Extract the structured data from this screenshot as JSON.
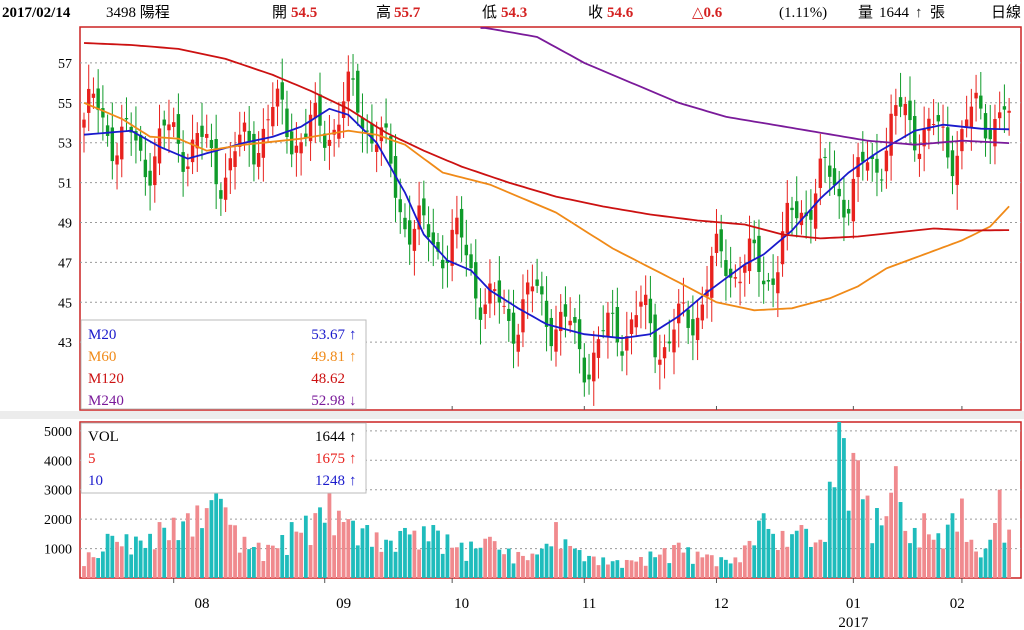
{
  "header": {
    "date": "2017/02/14",
    "stock": "3498 陽程",
    "open_label": "開",
    "open_value": "54.5",
    "high_label": "高",
    "high_value": "55.7",
    "low_label": "低",
    "low_value": "54.3",
    "close_label": "收",
    "close_value": "54.6",
    "change": "△0.6",
    "change_pct": "(1.11%)",
    "volume_label": "量",
    "volume_value": "1644",
    "volume_unit": "張",
    "period": "日線"
  },
  "colors": {
    "up": "#e8221e",
    "down": "#0f9b2a",
    "vol_up": "#f08a8e",
    "vol_down": "#1fbcbc",
    "ma20": "#1a1acc",
    "ma60": "#f08a18",
    "ma120": "#cc1111",
    "ma240": "#7a1a9a",
    "frame": "#cc2222"
  },
  "chart_data": [
    {
      "type": "candlestick",
      "y_ticks": [
        43,
        45,
        47,
        49,
        51,
        53,
        55,
        57
      ],
      "ylim": [
        39.6,
        58.8
      ],
      "x_ticks": [
        "08",
        "09",
        "10",
        "11",
        "12",
        "01",
        "02"
      ],
      "x_year_label": "2017",
      "legend": [
        {
          "name": "M20",
          "value": "53.67",
          "arrow": "↑"
        },
        {
          "name": "M60",
          "value": "49.81",
          "arrow": "↑"
        },
        {
          "name": "M120",
          "value": "48.62",
          "arrow": ""
        },
        {
          "name": "M240",
          "value": "52.98",
          "arrow": "↓"
        }
      ],
      "series": [
        {
          "name": "M20",
          "anchors": [
            [
              0,
              53.4
            ],
            [
              10,
              53.6
            ],
            [
              16,
              52.8
            ],
            [
              22,
              52.2
            ],
            [
              28,
              52.6
            ],
            [
              34,
              53.0
            ],
            [
              40,
              53.3
            ],
            [
              46,
              53.8
            ],
            [
              52,
              54.7
            ],
            [
              56,
              54.4
            ],
            [
              62,
              53.0
            ],
            [
              68,
              50.5
            ],
            [
              72,
              48.4
            ],
            [
              77,
              47.1
            ],
            [
              82,
              46.6
            ],
            [
              86,
              45.6
            ],
            [
              92,
              44.7
            ],
            [
              98,
              43.9
            ],
            [
              106,
              43.4
            ],
            [
              114,
              43.2
            ],
            [
              120,
              43.4
            ],
            [
              126,
              44.3
            ],
            [
              132,
              45.5
            ],
            [
              140,
              46.9
            ],
            [
              144,
              47.4
            ],
            [
              150,
              48.6
            ],
            [
              156,
              50.2
            ],
            [
              162,
              51.5
            ],
            [
              168,
              52.5
            ],
            [
              176,
              53.6
            ],
            [
              182,
              53.9
            ],
            [
              190,
              53.7
            ],
            [
              196,
              53.67
            ]
          ]
        },
        {
          "name": "M60",
          "anchors": [
            [
              0,
              55.0
            ],
            [
              8,
              54.2
            ],
            [
              14,
              53.3
            ],
            [
              20,
              53.2
            ],
            [
              26,
              52.6
            ],
            [
              34,
              52.9
            ],
            [
              46,
              53.2
            ],
            [
              56,
              53.6
            ],
            [
              62,
              53.4
            ],
            [
              68,
              52.9
            ],
            [
              76,
              51.5
            ],
            [
              86,
              50.9
            ],
            [
              100,
              49.5
            ],
            [
              112,
              47.7
            ],
            [
              126,
              46.0
            ],
            [
              134,
              45.0
            ],
            [
              142,
              44.6
            ],
            [
              150,
              44.7
            ],
            [
              158,
              45.2
            ],
            [
              164,
              45.8
            ],
            [
              170,
              46.7
            ],
            [
              178,
              47.4
            ],
            [
              186,
              48.1
            ],
            [
              192,
              48.8
            ],
            [
              196,
              49.81
            ]
          ]
        },
        {
          "name": "M120",
          "anchors": [
            [
              0,
              58.0
            ],
            [
              10,
              57.9
            ],
            [
              20,
              57.7
            ],
            [
              30,
              57.2
            ],
            [
              40,
              56.4
            ],
            [
              48,
              55.6
            ],
            [
              56,
              54.7
            ],
            [
              64,
              53.5
            ],
            [
              72,
              52.6
            ],
            [
              80,
              51.8
            ],
            [
              90,
              51.0
            ],
            [
              100,
              50.3
            ],
            [
              110,
              49.8
            ],
            [
              120,
              49.4
            ],
            [
              130,
              49.1
            ],
            [
              140,
              48.9
            ],
            [
              148,
              48.4
            ],
            [
              156,
              48.2
            ],
            [
              164,
              48.3
            ],
            [
              172,
              48.5
            ],
            [
              180,
              48.7
            ],
            [
              188,
              48.6
            ],
            [
              196,
              48.62
            ]
          ]
        },
        {
          "name": "M240",
          "anchors": [
            [
              84,
              58.8
            ],
            [
              96,
              58.3
            ],
            [
              106,
              57.0
            ],
            [
              116,
              56.0
            ],
            [
              126,
              55.0
            ],
            [
              136,
              54.3
            ],
            [
              146,
              53.9
            ],
            [
              156,
              53.5
            ],
            [
              166,
              53.1
            ],
            [
              176,
              52.9
            ],
            [
              186,
              53.1
            ],
            [
              196,
              52.98
            ]
          ]
        }
      ]
    },
    {
      "type": "bar",
      "y_ticks": [
        1000,
        2000,
        3000,
        4000,
        5000
      ],
      "ylim": [
        0,
        5300
      ],
      "legend": [
        {
          "name": "VOL",
          "value": "1644",
          "arrow": "↑"
        },
        {
          "name": "5",
          "value": "1675",
          "arrow": "↑"
        },
        {
          "name": "10",
          "value": "1248",
          "arrow": "↑"
        }
      ],
      "peaks": [
        [
          4,
          900
        ],
        [
          5,
          1500
        ],
        [
          14,
          1500
        ],
        [
          16,
          1900
        ],
        [
          22,
          2200
        ],
        [
          28,
          3000
        ],
        [
          30,
          2400
        ],
        [
          34,
          1400
        ],
        [
          40,
          1100
        ],
        [
          44,
          1900
        ],
        [
          50,
          2400
        ],
        [
          52,
          2900
        ],
        [
          56,
          2000
        ],
        [
          60,
          1800
        ],
        [
          64,
          1300
        ],
        [
          68,
          1700
        ],
        [
          74,
          1800
        ],
        [
          80,
          1200
        ],
        [
          86,
          1400
        ],
        [
          90,
          1000
        ],
        [
          96,
          800
        ],
        [
          100,
          1900
        ],
        [
          104,
          1000
        ],
        [
          110,
          700
        ],
        [
          116,
          600
        ],
        [
          120,
          900
        ],
        [
          126,
          1200
        ],
        [
          132,
          800
        ],
        [
          138,
          700
        ],
        [
          144,
          2200
        ],
        [
          146,
          1500
        ],
        [
          152,
          1800
        ],
        [
          156,
          1300
        ],
        [
          160,
          5300
        ],
        [
          164,
          4000
        ],
        [
          166,
          2800
        ],
        [
          170,
          2100
        ],
        [
          172,
          3800
        ],
        [
          174,
          1600
        ],
        [
          176,
          1700
        ],
        [
          178,
          2200
        ],
        [
          180,
          1300
        ],
        [
          184,
          2200
        ],
        [
          186,
          2700
        ],
        [
          188,
          1300
        ],
        [
          190,
          700
        ],
        [
          192,
          1300
        ],
        [
          194,
          3000
        ],
        [
          195,
          1200
        ],
        [
          196,
          1644
        ]
      ]
    }
  ]
}
